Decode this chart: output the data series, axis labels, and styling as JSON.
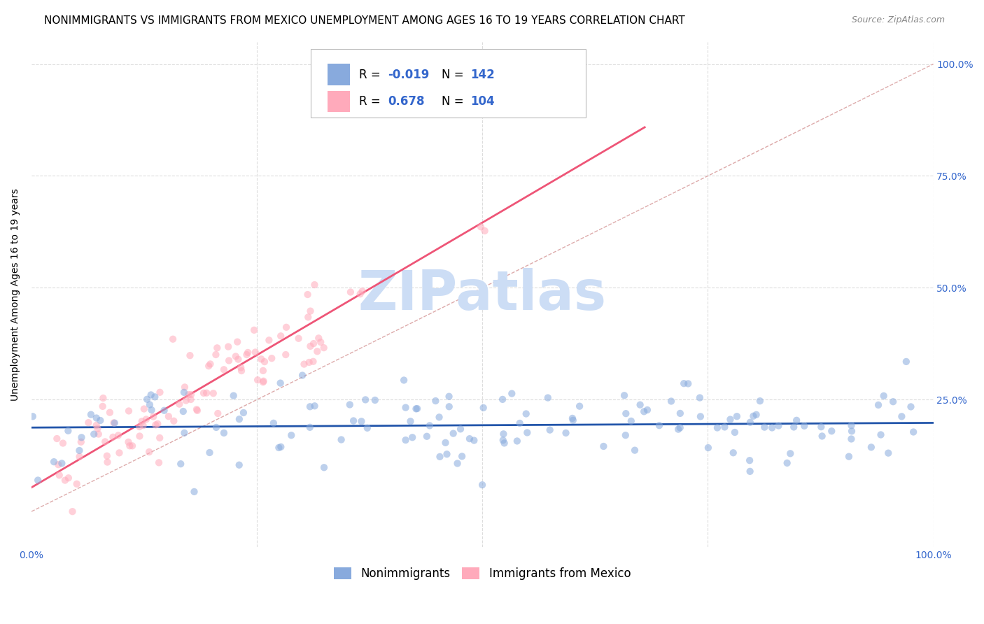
{
  "title": "NONIMMIGRANTS VS IMMIGRANTS FROM MEXICO UNEMPLOYMENT AMONG AGES 16 TO 19 YEARS CORRELATION CHART",
  "source": "Source: ZipAtlas.com",
  "ylabel": "Unemployment Among Ages 16 to 19 years",
  "xlim": [
    0.0,
    1.0
  ],
  "ylim": [
    -0.08,
    1.05
  ],
  "legend_blue_r": "-0.019",
  "legend_blue_n": "142",
  "legend_pink_r": "0.678",
  "legend_pink_n": "104",
  "legend_label_blue": "Nonimmigrants",
  "legend_label_pink": "Immigrants from Mexico",
  "blue_color": "#88AADD",
  "pink_color": "#FFAABB",
  "blue_line_color": "#2255AA",
  "pink_line_color": "#EE5577",
  "diagonal_color": "#DDAAAA",
  "watermark_color": "#CCDDF5",
  "title_fontsize": 11,
  "source_fontsize": 9,
  "label_fontsize": 10,
  "tick_fontsize": 10,
  "legend_fontsize": 12,
  "scatter_size": 55,
  "scatter_alpha": 0.55
}
